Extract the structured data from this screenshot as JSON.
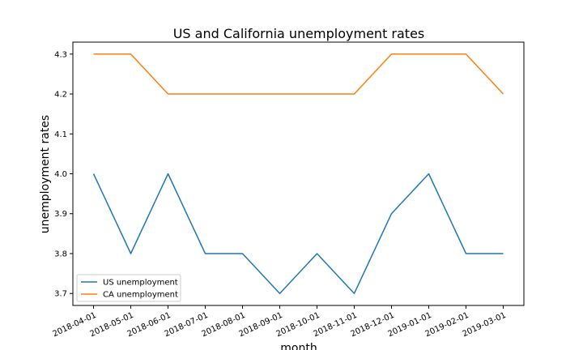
{
  "chart_data": {
    "type": "line",
    "title": "US and California unemployment rates",
    "xlabel": "month",
    "ylabel": "unemployment rates",
    "x": [
      "2018-04-01",
      "2018-05-01",
      "2018-06-01",
      "2018-07-01",
      "2018-08-01",
      "2018-09-01",
      "2018-10-01",
      "2018-11-01",
      "2018-12-01",
      "2019-01-01",
      "2019-02-01",
      "2019-03-01"
    ],
    "yticks": [
      3.7,
      3.8,
      3.9,
      4.0,
      4.1,
      4.2,
      4.3
    ],
    "ylim": [
      3.67,
      4.33
    ],
    "grid": false,
    "legend_position": "lower-left",
    "series": [
      {
        "name": "US unemployment",
        "color": "#1f77b4",
        "values": [
          4.0,
          3.8,
          4.0,
          3.8,
          3.8,
          3.7,
          3.8,
          3.7,
          3.9,
          4.0,
          3.8,
          3.8
        ]
      },
      {
        "name": "CA unemployment",
        "color": "#ff7f0e",
        "values": [
          4.3,
          4.3,
          4.2,
          4.2,
          4.2,
          4.2,
          4.2,
          4.2,
          4.3,
          4.3,
          4.3,
          4.2
        ]
      }
    ]
  }
}
